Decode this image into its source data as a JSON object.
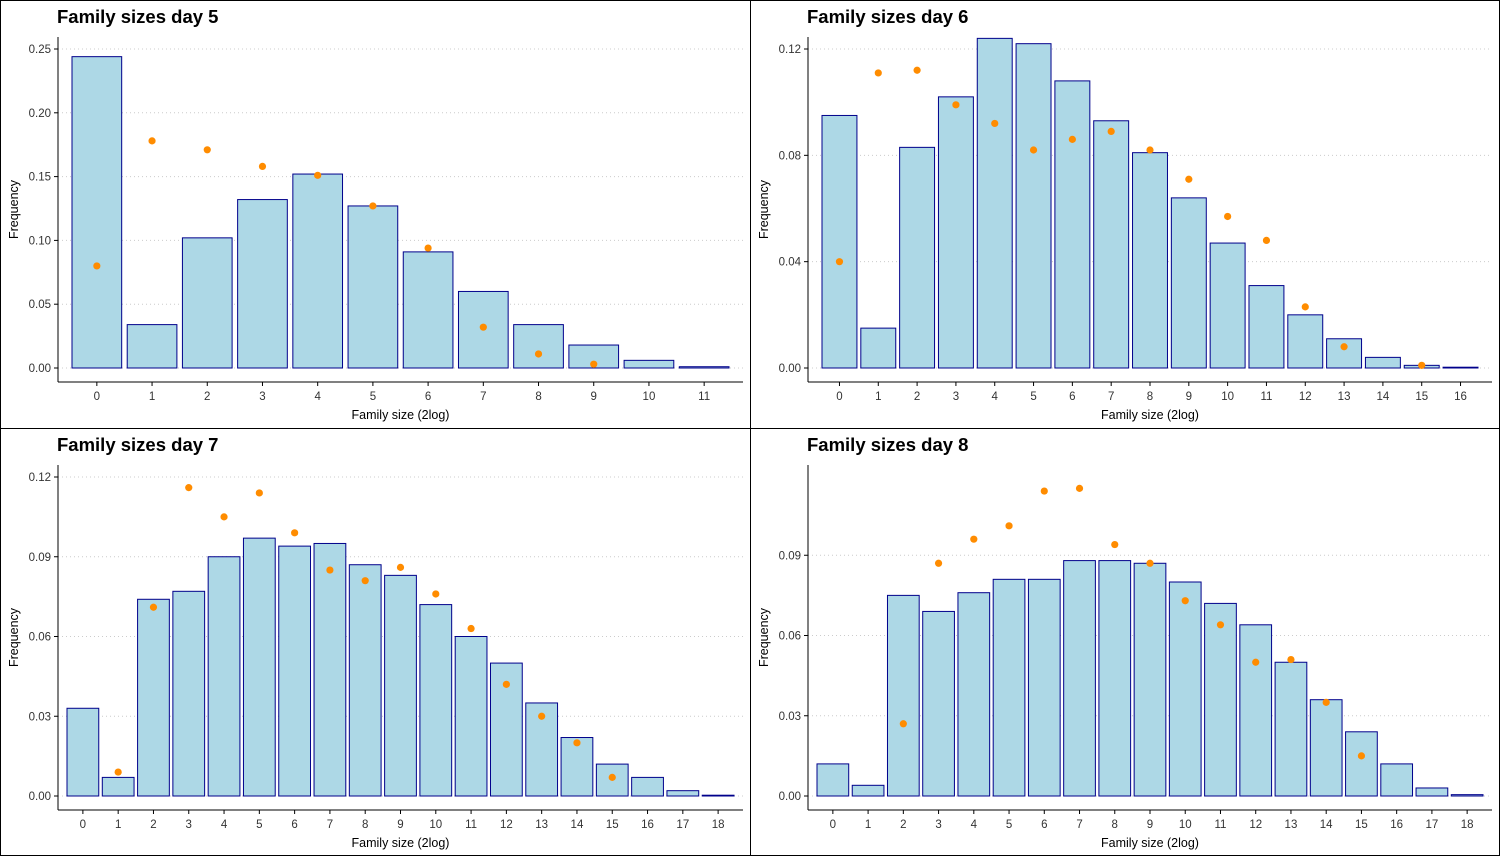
{
  "colors": {
    "bar_fill": "#add8e6",
    "bar_stroke": "#00008b",
    "point_fill": "#ff8c00",
    "grid": "#cccccc",
    "axis": "#000000"
  },
  "chart_data": [
    {
      "type": "bar",
      "title": "Family sizes day 5",
      "xlabel": "Family size (2log)",
      "ylabel": "Frequency",
      "categories": [
        "0",
        "1",
        "2",
        "3",
        "4",
        "5",
        "6",
        "7",
        "8",
        "9",
        "10",
        "11"
      ],
      "series": [
        {
          "kind": "bar",
          "values": [
            0.244,
            0.034,
            0.102,
            0.132,
            0.152,
            0.127,
            0.091,
            0.06,
            0.034,
            0.018,
            0.006,
            0.001
          ]
        },
        {
          "kind": "point",
          "values": [
            0.08,
            0.178,
            0.171,
            0.158,
            0.151,
            0.127,
            0.094,
            0.032,
            0.011,
            0.003,
            null,
            null
          ]
        }
      ],
      "yticks": [
        "0.00",
        "0.05",
        "0.10",
        "0.15",
        "0.20",
        "0.25"
      ],
      "ylim": [
        0,
        0.25
      ],
      "grid": "horizontal dotted"
    },
    {
      "type": "bar",
      "title": "Family sizes day 6",
      "xlabel": "Family size (2log)",
      "ylabel": "Frequency",
      "categories": [
        "0",
        "1",
        "2",
        "3",
        "4",
        "5",
        "6",
        "7",
        "8",
        "9",
        "10",
        "11",
        "12",
        "13",
        "14",
        "15",
        "16"
      ],
      "series": [
        {
          "kind": "bar",
          "values": [
            0.095,
            0.015,
            0.083,
            0.102,
            0.124,
            0.122,
            0.108,
            0.093,
            0.081,
            0.064,
            0.047,
            0.031,
            0.02,
            0.011,
            0.004,
            0.001,
            0.0003
          ]
        },
        {
          "kind": "point",
          "values": [
            0.04,
            0.111,
            0.112,
            0.099,
            0.092,
            0.082,
            0.086,
            0.089,
            0.082,
            0.071,
            0.057,
            0.048,
            0.023,
            0.008,
            null,
            0.001,
            null
          ]
        }
      ],
      "yticks": [
        "0.00",
        "0.04",
        "0.08",
        "0.12"
      ],
      "ylim": [
        0,
        0.12
      ],
      "grid": "horizontal dotted"
    },
    {
      "type": "bar",
      "title": "Family sizes day 7",
      "xlabel": "Family size (2log)",
      "ylabel": "Frequency",
      "categories": [
        "0",
        "1",
        "2",
        "3",
        "4",
        "5",
        "6",
        "7",
        "8",
        "9",
        "10",
        "11",
        "12",
        "13",
        "14",
        "15",
        "16",
        "17",
        "18"
      ],
      "series": [
        {
          "kind": "bar",
          "values": [
            0.033,
            0.007,
            0.074,
            0.077,
            0.09,
            0.097,
            0.094,
            0.095,
            0.087,
            0.083,
            0.072,
            0.06,
            0.05,
            0.035,
            0.022,
            0.012,
            0.007,
            0.002,
            0.0003
          ]
        },
        {
          "kind": "point",
          "values": [
            null,
            0.009,
            0.071,
            0.116,
            0.105,
            0.114,
            0.099,
            0.085,
            0.081,
            0.086,
            0.076,
            0.063,
            0.042,
            0.03,
            0.02,
            0.007,
            null,
            null,
            null
          ]
        }
      ],
      "yticks": [
        "0.00",
        "0.03",
        "0.06",
        "0.09",
        "0.12"
      ],
      "ylim": [
        0,
        0.12
      ],
      "grid": "horizontal dotted"
    },
    {
      "type": "bar",
      "title": "Family sizes day 8",
      "xlabel": "Family size (2log)",
      "ylabel": "Frequency",
      "categories": [
        "0",
        "1",
        "2",
        "3",
        "4",
        "5",
        "6",
        "7",
        "8",
        "9",
        "10",
        "11",
        "12",
        "13",
        "14",
        "15",
        "16",
        "17",
        "18"
      ],
      "series": [
        {
          "kind": "bar",
          "values": [
            0.012,
            0.004,
            0.075,
            0.069,
            0.076,
            0.081,
            0.081,
            0.088,
            0.088,
            0.087,
            0.08,
            0.072,
            0.064,
            0.05,
            0.036,
            0.024,
            0.012,
            0.003,
            0.0005
          ]
        },
        {
          "kind": "point",
          "values": [
            null,
            null,
            0.027,
            0.087,
            0.096,
            0.101,
            0.114,
            0.115,
            0.094,
            0.087,
            0.073,
            0.064,
            0.05,
            0.051,
            0.035,
            0.015,
            null,
            null,
            null
          ]
        }
      ],
      "yticks": [
        "0.00",
        "0.03",
        "0.06",
        "0.09"
      ],
      "ylim": [
        0,
        0.12
      ],
      "grid": "horizontal dotted"
    }
  ]
}
